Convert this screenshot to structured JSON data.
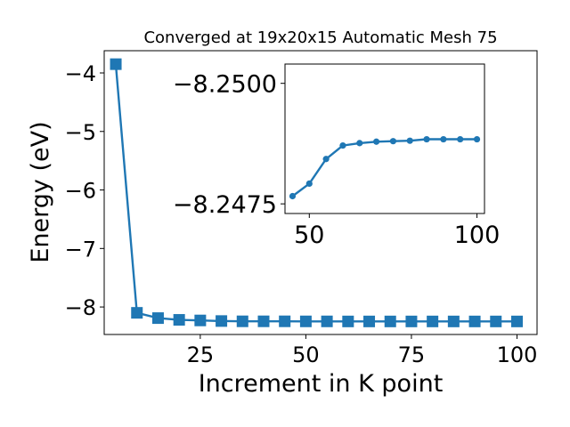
{
  "chart_data": [
    {
      "type": "line",
      "title": "Converged at 19x20x15 Automatic Mesh 75",
      "xlabel": "Increment in K point",
      "ylabel": "Energy (eV)",
      "xlim": [
        2.25,
        104.75
      ],
      "ylim": [
        -8.47,
        -3.62
      ],
      "x_ticks": [
        25,
        50,
        75,
        100
      ],
      "x_tick_labels": [
        "25",
        "50",
        "75",
        "100"
      ],
      "y_ticks": [
        -8,
        -7,
        -6,
        -5,
        -4
      ],
      "y_tick_labels": [
        "−8",
        "−7",
        "−6",
        "−5",
        "−4"
      ],
      "grid": false,
      "marker": "square",
      "color": "#1f77b4",
      "series": [
        {
          "x": [
            5,
            10,
            15,
            20,
            25,
            30,
            35,
            40,
            45,
            50,
            55,
            60,
            65,
            70,
            75,
            80,
            85,
            90,
            95,
            100
          ],
          "values": [
            -3.85,
            -8.1,
            -8.19,
            -8.22,
            -8.23,
            -8.24,
            -8.245,
            -8.245,
            -8.245,
            -8.246,
            -8.246,
            -8.247,
            -8.247,
            -8.247,
            -8.247,
            -8.247,
            -8.247,
            -8.247,
            -8.247,
            -8.247
          ]
        }
      ]
    },
    {
      "type": "line",
      "title": "",
      "xlabel": "",
      "ylabel": "",
      "xlim": [
        42.75,
        102.25
      ],
      "ylim_top_bottom": [
        -8.2504,
        -8.2473
      ],
      "x_ticks": [
        50,
        100
      ],
      "x_tick_labels": [
        "50",
        "100"
      ],
      "y_ticks": [
        -8.25,
        -8.2475
      ],
      "y_tick_labels": [
        "−8.2500",
        "−8.2475"
      ],
      "grid": false,
      "marker": "circle",
      "color": "#1f77b4",
      "series": [
        {
          "x": [
            45,
            50,
            55,
            60,
            65,
            70,
            75,
            80,
            85,
            90,
            95,
            100
          ],
          "values": [
            -8.24766,
            -8.24792,
            -8.24843,
            -8.24871,
            -8.24876,
            -8.24879,
            -8.2488,
            -8.24881,
            -8.24884,
            -8.24884,
            -8.24884,
            -8.24884
          ]
        }
      ]
    }
  ]
}
